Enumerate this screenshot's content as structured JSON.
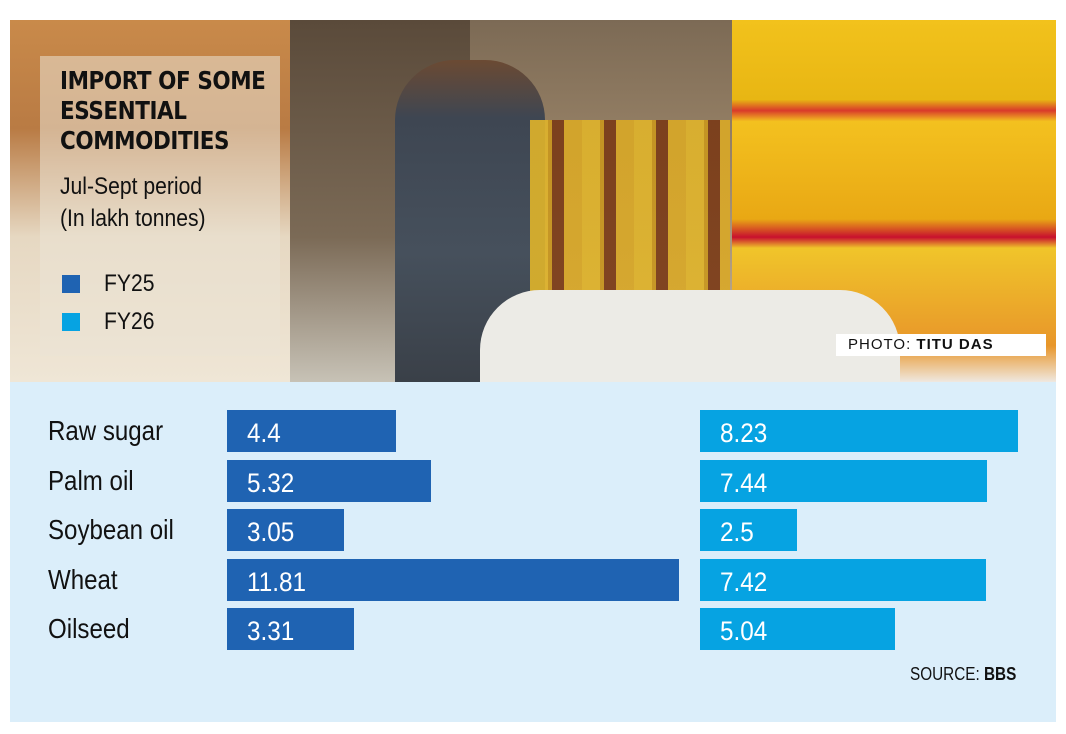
{
  "title_lines": [
    "IMPORT OF SOME",
    "ESSENTIAL",
    "COMMODITIES"
  ],
  "subtitle_lines": [
    "Jul-Sept period",
    "(In lakh tonnes)"
  ],
  "photo_credit_label": "PHOTO:",
  "photo_credit_name": "TITU DAS",
  "source_label": "SOURCE:",
  "source_name": "BBS",
  "colors": {
    "FY25": "#1f63b2",
    "FY26": "#06a3e2",
    "panel": "#dbeefa"
  },
  "chart_data": {
    "type": "bar",
    "orientation": "horizontal",
    "categories": [
      "Raw sugar",
      "Palm oil",
      "Soybean oil",
      "Wheat",
      "Oilseed"
    ],
    "series": [
      {
        "name": "FY25",
        "values": [
          4.4,
          5.32,
          3.05,
          11.81,
          3.31
        ]
      },
      {
        "name": "FY26",
        "values": [
          8.23,
          7.44,
          2.5,
          7.42,
          5.04
        ]
      }
    ],
    "value_labels": {
      "FY25": [
        "4.4",
        "5.32",
        "3.05",
        "11.81",
        "3.31"
      ],
      "FY26": [
        "8.23",
        "7.44",
        "2.5",
        "7.42",
        "5.04"
      ]
    },
    "legend": [
      "FY25",
      "FY26"
    ],
    "legend_position": "left",
    "grid": false
  }
}
